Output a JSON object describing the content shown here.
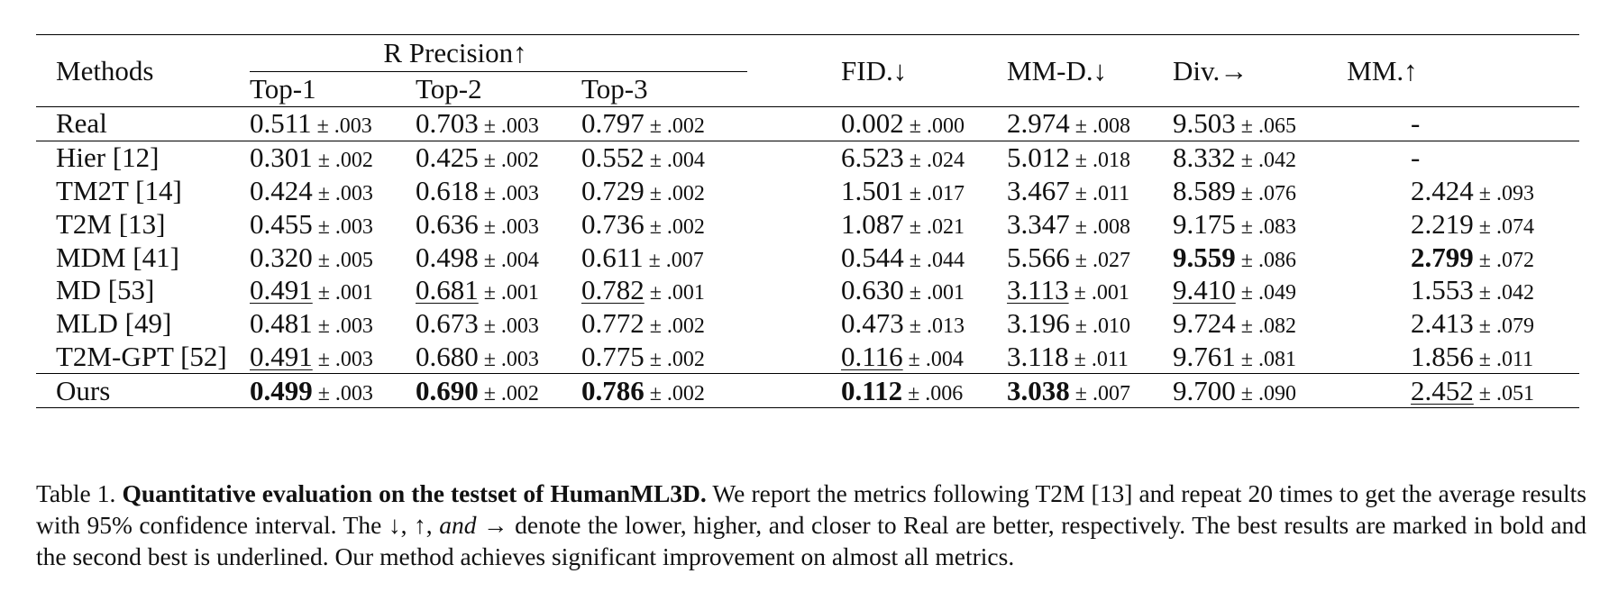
{
  "table": {
    "headers": {
      "methods": "Methods",
      "r_precision": "R Precision↑",
      "top1": "Top-1",
      "top2": "Top-2",
      "top3": "Top-3",
      "fid": "FID.↓",
      "mmd": "MM-D.↓",
      "div": "Div.→",
      "mm": "MM.↑"
    },
    "pm_symbol": "±",
    "rows": [
      {
        "method": "Real",
        "cells": [
          {
            "v": "0.511",
            "e": ".003",
            "s": ""
          },
          {
            "v": "0.703",
            "e": ".003",
            "s": ""
          },
          {
            "v": "0.797",
            "e": ".002",
            "s": ""
          },
          {
            "v": "0.002",
            "e": ".000",
            "s": ""
          },
          {
            "v": "2.974",
            "e": ".008",
            "s": ""
          },
          {
            "v": "9.503",
            "e": ".065",
            "s": ""
          },
          {
            "v": "-",
            "e": "",
            "s": ""
          }
        ]
      },
      {
        "method": "Hier [12]",
        "cells": [
          {
            "v": "0.301",
            "e": ".002",
            "s": ""
          },
          {
            "v": "0.425",
            "e": ".002",
            "s": ""
          },
          {
            "v": "0.552",
            "e": ".004",
            "s": ""
          },
          {
            "v": "6.523",
            "e": ".024",
            "s": ""
          },
          {
            "v": "5.012",
            "e": ".018",
            "s": ""
          },
          {
            "v": "8.332",
            "e": ".042",
            "s": ""
          },
          {
            "v": "-",
            "e": "",
            "s": ""
          }
        ]
      },
      {
        "method": "TM2T [14]",
        "cells": [
          {
            "v": "0.424",
            "e": ".003",
            "s": ""
          },
          {
            "v": "0.618",
            "e": ".003",
            "s": ""
          },
          {
            "v": "0.729",
            "e": ".002",
            "s": ""
          },
          {
            "v": "1.501",
            "e": ".017",
            "s": ""
          },
          {
            "v": "3.467",
            "e": ".011",
            "s": ""
          },
          {
            "v": "8.589",
            "e": ".076",
            "s": ""
          },
          {
            "v": "2.424",
            "e": ".093",
            "s": ""
          }
        ]
      },
      {
        "method": "T2M [13]",
        "cells": [
          {
            "v": "0.455",
            "e": ".003",
            "s": ""
          },
          {
            "v": "0.636",
            "e": ".003",
            "s": ""
          },
          {
            "v": "0.736",
            "e": ".002",
            "s": ""
          },
          {
            "v": "1.087",
            "e": ".021",
            "s": ""
          },
          {
            "v": "3.347",
            "e": ".008",
            "s": ""
          },
          {
            "v": "9.175",
            "e": ".083",
            "s": ""
          },
          {
            "v": "2.219",
            "e": ".074",
            "s": ""
          }
        ]
      },
      {
        "method": "MDM [41]",
        "cells": [
          {
            "v": "0.320",
            "e": ".005",
            "s": ""
          },
          {
            "v": "0.498",
            "e": ".004",
            "s": ""
          },
          {
            "v": "0.611",
            "e": ".007",
            "s": ""
          },
          {
            "v": "0.544",
            "e": ".044",
            "s": ""
          },
          {
            "v": "5.566",
            "e": ".027",
            "s": ""
          },
          {
            "v": "9.559",
            "e": ".086",
            "s": "best"
          },
          {
            "v": "2.799",
            "e": ".072",
            "s": "best"
          }
        ]
      },
      {
        "method": "MD [53]",
        "cells": [
          {
            "v": "0.491",
            "e": ".001",
            "s": "second"
          },
          {
            "v": "0.681",
            "e": ".001",
            "s": "second"
          },
          {
            "v": "0.782",
            "e": ".001",
            "s": "second"
          },
          {
            "v": "0.630",
            "e": ".001",
            "s": ""
          },
          {
            "v": "3.113",
            "e": ".001",
            "s": "second"
          },
          {
            "v": "9.410",
            "e": ".049",
            "s": "second"
          },
          {
            "v": "1.553",
            "e": ".042",
            "s": ""
          }
        ]
      },
      {
        "method": "MLD [49]",
        "cells": [
          {
            "v": "0.481",
            "e": ".003",
            "s": ""
          },
          {
            "v": "0.673",
            "e": ".003",
            "s": ""
          },
          {
            "v": "0.772",
            "e": ".002",
            "s": ""
          },
          {
            "v": "0.473",
            "e": ".013",
            "s": ""
          },
          {
            "v": "3.196",
            "e": ".010",
            "s": ""
          },
          {
            "v": "9.724",
            "e": ".082",
            "s": ""
          },
          {
            "v": "2.413",
            "e": ".079",
            "s": ""
          }
        ]
      },
      {
        "method": "T2M-GPT [52]",
        "cells": [
          {
            "v": "0.491",
            "e": ".003",
            "s": "second"
          },
          {
            "v": "0.680",
            "e": ".003",
            "s": ""
          },
          {
            "v": "0.775",
            "e": ".002",
            "s": ""
          },
          {
            "v": "0.116",
            "e": ".004",
            "s": "second"
          },
          {
            "v": "3.118",
            "e": ".011",
            "s": ""
          },
          {
            "v": "9.761",
            "e": ".081",
            "s": ""
          },
          {
            "v": "1.856",
            "e": ".011",
            "s": ""
          }
        ]
      },
      {
        "method": "Ours",
        "cells": [
          {
            "v": "0.499",
            "e": ".003",
            "s": "best"
          },
          {
            "v": "0.690",
            "e": ".002",
            "s": "best"
          },
          {
            "v": "0.786",
            "e": ".002",
            "s": "best"
          },
          {
            "v": "0.112",
            "e": ".006",
            "s": "best"
          },
          {
            "v": "3.038",
            "e": ".007",
            "s": "best"
          },
          {
            "v": "9.700",
            "e": ".090",
            "s": ""
          },
          {
            "v": "2.452",
            "e": ".051",
            "s": "second"
          }
        ]
      }
    ]
  },
  "caption": {
    "label": "Table 1.",
    "bold_title": "Quantitative evaluation on the testset of HumanML3D.",
    "text_1": "We report the metrics following T2M [13] and repeat 20 times to get the average results with 95% confidence interval. The ↓, ↑,",
    "math_and": "and",
    "text_2": "→ denote the lower, higher, and closer to Real are better, respectively. The best results are marked in bold and the second best is underlined. Our method achieves significant improvement on almost all metrics."
  }
}
